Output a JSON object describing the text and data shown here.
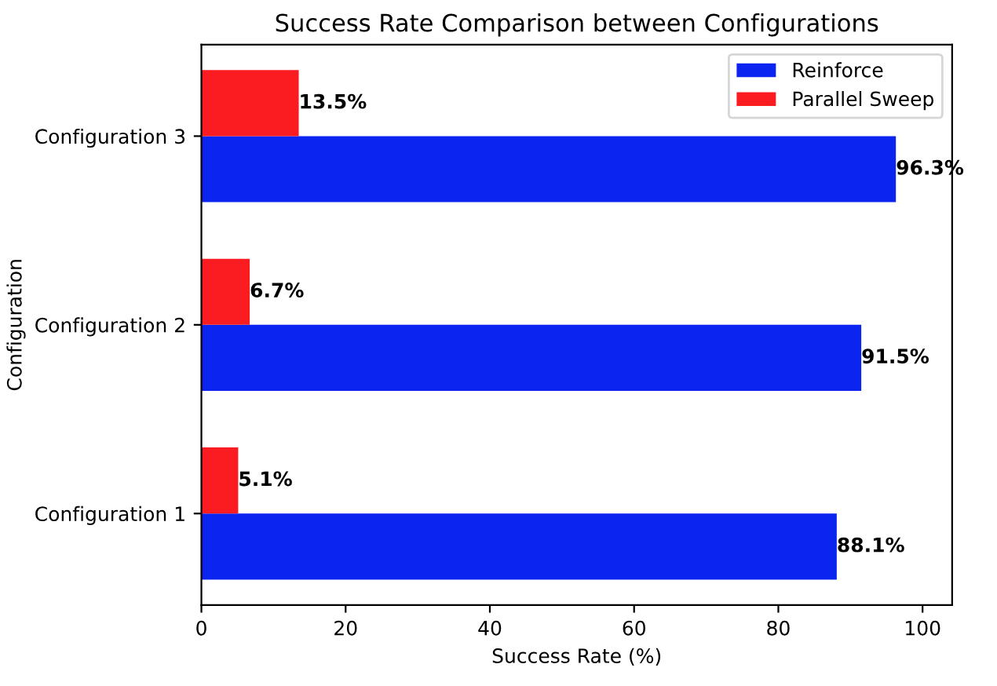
{
  "chart_data": {
    "type": "bar",
    "orientation": "horizontal",
    "title": "Success Rate Comparison between Configurations",
    "xlabel": "Success Rate (%)",
    "ylabel": "Configuration",
    "categories": [
      "Configuration 3",
      "Configuration 2",
      "Configuration 1"
    ],
    "series": [
      {
        "name": "Reinforce",
        "color": "#0b24f0",
        "values": [
          96.3,
          91.5,
          88.1
        ],
        "value_labels": [
          "96.3%",
          "91.5%",
          "88.1%"
        ]
      },
      {
        "name": "Parallel Sweep",
        "color": "#fb1c22",
        "values": [
          13.5,
          6.7,
          5.1
        ],
        "value_labels": [
          "13.5%",
          "6.7%",
          "5.1%"
        ]
      }
    ],
    "xlim": [
      0,
      104.1
    ],
    "xticks": [
      0,
      20,
      40,
      60,
      80,
      100
    ],
    "grid": false,
    "legend": "top right"
  }
}
